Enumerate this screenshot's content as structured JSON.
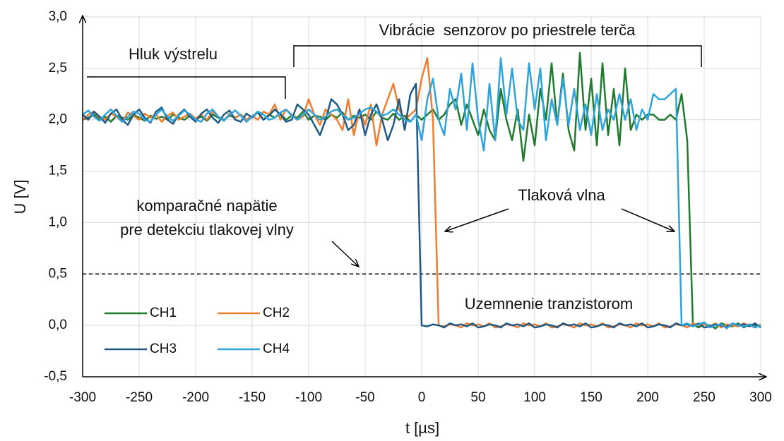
{
  "chart_data": {
    "type": "line",
    "x_label": "t [µs]",
    "y_label": "U [V]",
    "x": [
      -300,
      -295,
      -290,
      -285,
      -280,
      -275,
      -270,
      -265,
      -260,
      -255,
      -250,
      -245,
      -240,
      -235,
      -230,
      -225,
      -220,
      -215,
      -210,
      -205,
      -200,
      -195,
      -190,
      -185,
      -180,
      -175,
      -170,
      -165,
      -160,
      -155,
      -150,
      -145,
      -140,
      -135,
      -130,
      -125,
      -120,
      -115,
      -110,
      -105,
      -100,
      -95,
      -90,
      -85,
      -80,
      -75,
      -70,
      -65,
      -60,
      -55,
      -50,
      -45,
      -40,
      -35,
      -30,
      -25,
      -20,
      -15,
      -10,
      -5,
      0,
      5,
      10,
      15,
      20,
      25,
      30,
      35,
      40,
      45,
      50,
      55,
      60,
      65,
      70,
      75,
      80,
      85,
      90,
      95,
      100,
      105,
      110,
      115,
      120,
      125,
      130,
      135,
      140,
      145,
      150,
      155,
      160,
      165,
      170,
      175,
      180,
      185,
      190,
      195,
      200,
      205,
      210,
      215,
      220,
      225,
      230,
      235,
      240,
      245,
      250,
      255,
      260,
      265,
      270,
      275,
      280,
      285,
      290,
      295,
      300
    ],
    "series": [
      {
        "name": "CH1",
        "color": "#217b2f",
        "values": [
          2.0,
          2.02,
          2.05,
          2.0,
          2.03,
          1.98,
          2.04,
          2.02,
          2.0,
          2.05,
          2.02,
          1.99,
          2.04,
          2.01,
          2.03,
          2.0,
          2.05,
          2.02,
          2.0,
          2.04,
          2.01,
          2.03,
          1.99,
          2.05,
          2.02,
          2.0,
          2.04,
          2.02,
          2.05,
          2.0,
          2.03,
          2.07,
          2.0,
          2.05,
          2.02,
          2.06,
          2.0,
          2.04,
          2.02,
          2.08,
          2.0,
          2.04,
          2.03,
          2.0,
          2.05,
          2.02,
          2.07,
          2.0,
          2.04,
          2.02,
          2.05,
          2.0,
          2.08,
          2.02,
          2.0,
          2.06,
          2.0,
          2.04,
          1.98,
          2.05,
          2.0,
          2.05,
          2.1,
          2.0,
          2.05,
          2.15,
          2.2,
          1.95,
          2.15,
          2.0,
          1.85,
          2.1,
          1.9,
          1.8,
          2.3,
          2.0,
          1.8,
          2.1,
          1.6,
          2.05,
          1.75,
          2.3,
          2.0,
          2.55,
          1.95,
          2.45,
          1.9,
          1.7,
          2.65,
          1.9,
          2.4,
          1.75,
          2.55,
          1.85,
          2.3,
          1.75,
          2.5,
          1.9,
          2.05,
          2.0,
          2.05,
          2.05,
          2.0,
          2.0,
          2.05,
          2.0,
          2.25,
          1.8,
          0.01,
          -0.02,
          0.01,
          0.0,
          -0.03,
          0.02,
          0.0,
          -0.01,
          0.02,
          -0.02,
          0.01,
          0.0,
          -0.01
        ]
      },
      {
        "name": "CH2",
        "color": "#ed7d31",
        "values": [
          2.0,
          2.05,
          2.08,
          2.02,
          2.0,
          2.06,
          2.03,
          1.98,
          2.07,
          2.04,
          2.0,
          2.06,
          2.02,
          2.05,
          1.98,
          2.04,
          2.07,
          2.0,
          2.03,
          2.06,
          2.01,
          2.05,
          2.0,
          2.08,
          2.03,
          1.99,
          2.06,
          2.02,
          2.05,
          2.0,
          2.04,
          2.0,
          2.08,
          2.05,
          2.15,
          2.0,
          2.1,
          2.05,
          2.0,
          2.03,
          2.2,
          2.05,
          1.95,
          2.1,
          2.05,
          2.0,
          1.9,
          2.2,
          1.85,
          2.1,
          1.95,
          2.15,
          1.75,
          2.05,
          2.2,
          2.35,
          2.1,
          2.0,
          2.05,
          2.1,
          2.4,
          2.6,
          2.0,
          0.0,
          -0.01,
          0.01,
          0.0,
          -0.02,
          0.02,
          0.0,
          0.01,
          -0.01,
          0.02,
          -0.02,
          -0.01,
          0.01,
          0.0,
          -0.02,
          0.02,
          0.0,
          0.01,
          -0.01,
          0.02,
          -0.02,
          -0.01,
          0.01,
          0.0,
          -0.02,
          0.02,
          0.0,
          0.01,
          -0.01,
          0.02,
          -0.02,
          -0.01,
          0.01,
          0.0,
          -0.02,
          0.02,
          0.0,
          0.01,
          -0.01,
          0.02,
          -0.02,
          -0.01,
          0.01,
          0.0,
          -0.02,
          0.02,
          0.0,
          0.01,
          -0.01,
          0.02,
          -0.02,
          0.01,
          0.0,
          -0.01,
          0.02,
          0.0,
          -0.02,
          0.01
        ]
      },
      {
        "name": "CH3",
        "color": "#1f5a85",
        "values": [
          2.05,
          2.0,
          2.08,
          2.03,
          1.97,
          2.06,
          2.1,
          2.0,
          1.95,
          2.05,
          2.1,
          2.02,
          1.97,
          2.08,
          2.12,
          2.0,
          1.96,
          2.05,
          2.1,
          2.03,
          1.98,
          2.06,
          2.1,
          2.02,
          1.97,
          2.05,
          2.09,
          2.0,
          1.98,
          2.06,
          2.02,
          2.08,
          2.0,
          2.04,
          2.1,
          2.05,
          1.98,
          2.0,
          2.15,
          2.1,
          2.05,
          1.95,
          1.85,
          2.0,
          2.2,
          2.15,
          2.05,
          1.9,
          1.95,
          2.1,
          1.85,
          2.05,
          2.15,
          2.0,
          1.8,
          1.95,
          2.2,
          1.9,
          2.25,
          2.35,
          0.0,
          -0.01,
          0.01,
          0.0,
          -0.02,
          0.02,
          0.0,
          0.01,
          -0.01,
          0.02,
          -0.02,
          -0.01,
          0.01,
          0.0,
          -0.02,
          0.02,
          0.0,
          0.01,
          -0.01,
          0.02,
          -0.02,
          -0.01,
          0.01,
          0.0,
          -0.02,
          0.02,
          0.0,
          0.01,
          -0.01,
          0.02,
          -0.02,
          -0.01,
          0.01,
          0.0,
          -0.02,
          0.02,
          0.0,
          0.01,
          -0.01,
          0.02,
          -0.02,
          -0.01,
          0.01,
          0.0,
          -0.02,
          0.02,
          0.0,
          0.01,
          -0.01,
          0.02,
          -0.02,
          -0.01,
          0.01,
          0.0,
          -0.02,
          0.02,
          0.0,
          0.01,
          -0.01,
          0.02,
          -0.02
        ]
      },
      {
        "name": "CH4",
        "color": "#2fa3dc",
        "values": [
          2.05,
          2.09,
          2.03,
          1.99,
          2.05,
          2.1,
          2.04,
          1.98,
          2.03,
          2.08,
          2.06,
          2.0,
          1.98,
          2.05,
          2.1,
          2.03,
          1.99,
          2.04,
          2.09,
          2.05,
          2.0,
          1.98,
          2.06,
          2.1,
          2.03,
          1.99,
          2.05,
          2.09,
          2.04,
          1.98,
          2.03,
          2.08,
          2.05,
          2.0,
          2.02,
          2.07,
          2.1,
          2.04,
          2.0,
          2.05,
          2.1,
          2.05,
          2.0,
          2.03,
          2.08,
          2.1,
          2.05,
          2.0,
          2.02,
          2.06,
          2.1,
          2.12,
          2.08,
          2.04,
          2.06,
          2.1,
          2.05,
          2.0,
          1.98,
          2.05,
          1.8,
          2.2,
          2.4,
          2.0,
          1.85,
          2.3,
          2.1,
          2.45,
          1.9,
          2.55,
          2.0,
          1.7,
          2.35,
          1.8,
          2.6,
          2.05,
          2.5,
          2.0,
          1.9,
          2.55,
          2.1,
          2.5,
          1.8,
          2.2,
          1.95,
          2.4,
          1.95,
          2.3,
          1.9,
          2.15,
          1.85,
          2.25,
          1.9,
          2.1,
          2.0,
          2.25,
          2.0,
          2.2,
          1.9,
          2.1,
          2.0,
          2.25,
          2.2,
          2.2,
          2.25,
          2.3,
          0.0,
          0.02,
          -0.01,
          0.01,
          0.03,
          -0.02,
          0.0,
          0.01,
          -0.03,
          0.02,
          0.0,
          -0.01,
          0.01,
          -0.02,
          0.0
        ]
      }
    ],
    "xlim": [
      -300,
      300
    ],
    "xticks": [
      -300,
      -250,
      -200,
      -150,
      -100,
      -50,
      0,
      50,
      100,
      150,
      200,
      250,
      300
    ],
    "ylim": [
      -0.5,
      3.0
    ],
    "yticks": [
      {
        "value": -0.5,
        "label": "-0,5"
      },
      {
        "value": 0,
        "label": "0,0"
      },
      {
        "value": 0.5,
        "label": "0,5"
      },
      {
        "value": 1.0,
        "label": "1,0"
      },
      {
        "value": 1.5,
        "label": "1,5"
      },
      {
        "value": 2.0,
        "label": "2,0"
      },
      {
        "value": 2.5,
        "label": "2,5"
      },
      {
        "value": 3.0,
        "label": "3,0"
      }
    ],
    "grid": true,
    "legend": "lower left",
    "threshold": 0.5,
    "annotations": {
      "noise": "Hluk výstrelu",
      "vibration": "Vibrácie  senzorov po priestrele terča",
      "comparison": [
        "komparačné napätie",
        "pre detekciu tlakovej vlny"
      ],
      "wave": "Tlaková vlna",
      "ground": "Uzemnenie tranzistorom"
    }
  }
}
